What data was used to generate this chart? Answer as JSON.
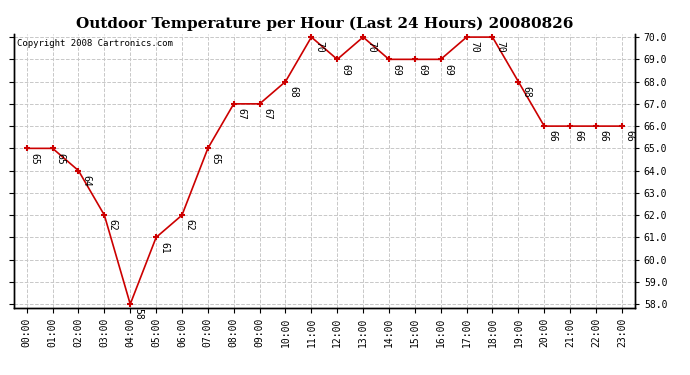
{
  "title": "Outdoor Temperature per Hour (Last 24 Hours) 20080826",
  "copyright": "Copyright 2008 Cartronics.com",
  "hours": [
    "00:00",
    "01:00",
    "02:00",
    "03:00",
    "04:00",
    "05:00",
    "06:00",
    "07:00",
    "08:00",
    "09:00",
    "10:00",
    "11:00",
    "12:00",
    "13:00",
    "14:00",
    "15:00",
    "16:00",
    "17:00",
    "18:00",
    "19:00",
    "20:00",
    "21:00",
    "22:00",
    "23:00"
  ],
  "temps": [
    65,
    65,
    64,
    62,
    58,
    61,
    62,
    65,
    67,
    67,
    68,
    70,
    69,
    70,
    69,
    69,
    69,
    70,
    70,
    68,
    66,
    66,
    66,
    66
  ],
  "ylim_min": 58.0,
  "ylim_max": 70.0,
  "line_color": "#cc0000",
  "marker_color": "#cc0000",
  "grid_color": "#c8c8c8",
  "bg_color": "#ffffff",
  "title_fontsize": 11,
  "label_fontsize": 7,
  "copyright_fontsize": 6.5,
  "tick_fontsize": 7,
  "ytick_vals": [
    58.0,
    59.0,
    60.0,
    61.0,
    62.0,
    63.0,
    64.0,
    65.0,
    66.0,
    67.0,
    68.0,
    69.0,
    70.0
  ]
}
